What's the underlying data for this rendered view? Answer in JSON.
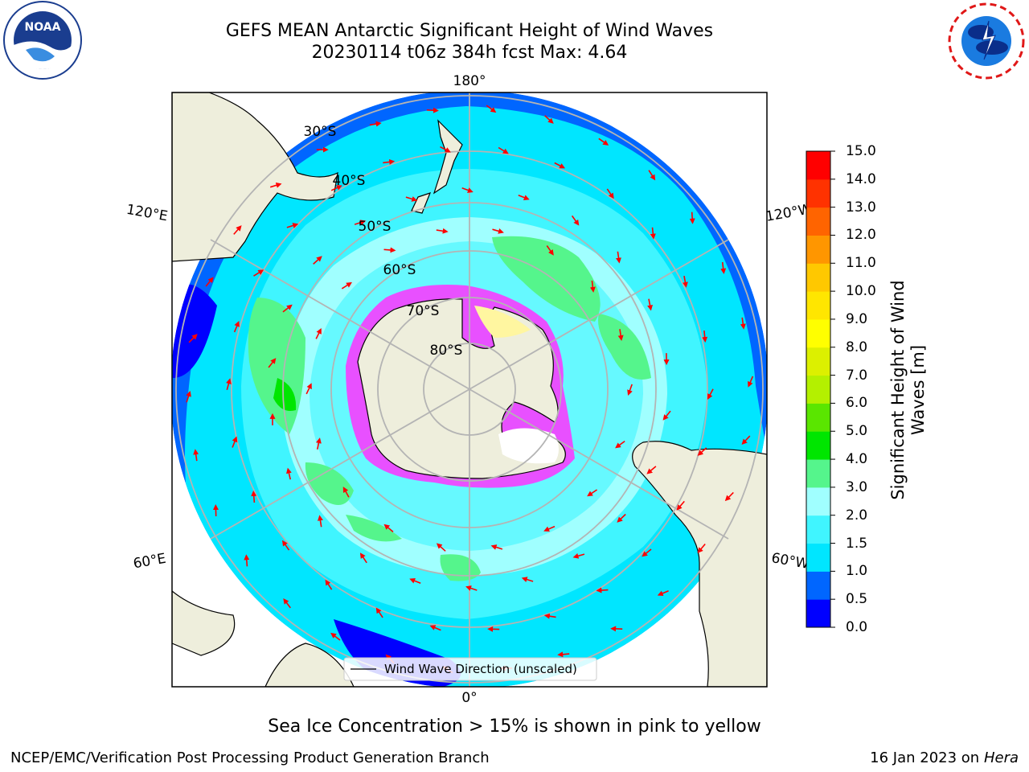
{
  "title": {
    "line1": "GEFS MEAN Antarctic Significant Height of Wind Waves",
    "line2": "20230114 t06z 384h fcst   Max: 4.64"
  },
  "logos": {
    "left": {
      "text": "NOAA",
      "ring_text": "NATIONAL OCEANIC AND ATMOSPHERIC ADMINISTRATION · U.S. DEPARTMENT OF COMMERCE"
    },
    "right": {
      "ring_text": "NATIONAL WEATHER SERVICE"
    }
  },
  "map": {
    "lon_labels": {
      "top": "180°",
      "bottom": "0°",
      "left_upper": "120°E",
      "left_lower": "60°E",
      "right_upper": "120°W",
      "right_lower": "60°W"
    },
    "lat_labels": [
      "30°S",
      "40°S",
      "50°S",
      "60°S",
      "70°S",
      "80°S"
    ],
    "legend": "Wind Wave Direction (unscaled)",
    "colors": {
      "land": "#eeeedc",
      "ocean_edge": "#0066ff",
      "arrow": "#ff0000",
      "grid": "#b4b4b4"
    }
  },
  "colorbar": {
    "ticks": [
      "0.0",
      "0.5",
      "1.0",
      "1.5",
      "2.0",
      "3.0",
      "4.0",
      "5.0",
      "6.0",
      "7.0",
      "8.0",
      "9.0",
      "10.0",
      "11.0",
      "12.0",
      "13.0",
      "14.0",
      "15.0"
    ],
    "colors": [
      "#0000ff",
      "#0066ff",
      "#00e6ff",
      "#40f5ff",
      "#a0ffff",
      "#55f58c",
      "#00e600",
      "#5ae600",
      "#b4f000",
      "#dcf000",
      "#ffff00",
      "#ffe600",
      "#ffc800",
      "#ff9600",
      "#ff6400",
      "#ff3200",
      "#ff0000"
    ],
    "label": "Significant Height of Wind Waves [m]"
  },
  "note": "Sea Ice Concentration > 15% is shown in pink to yellow",
  "footer": {
    "left": "NCEP/EMC/Verification Post Processing Product Generation Branch",
    "right_prefix": "16 Jan 2023 on ",
    "right_host": "Hera"
  }
}
